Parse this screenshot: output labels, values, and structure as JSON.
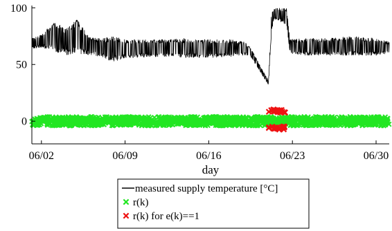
{
  "chart_data": {
    "type": "line",
    "title": "",
    "xlabel": "day",
    "ylabel": "",
    "x_unit": "day of month (June)",
    "xlim": [
      1.2,
      31.1
    ],
    "ylim": [
      -20,
      102
    ],
    "yticks": [
      0,
      50,
      100
    ],
    "xticks": [
      {
        "value": 2,
        "label": "06/02"
      },
      {
        "value": 9,
        "label": "06/09"
      },
      {
        "value": 16,
        "label": "06/16"
      },
      {
        "value": 23,
        "label": "06/23"
      },
      {
        "value": 30,
        "label": "06/30"
      }
    ],
    "legend_position": "bottom-center",
    "grid": false,
    "series": [
      {
        "name": "measured supply temperature [°C]",
        "type": "line",
        "color": "#000000",
        "envelope": [
          {
            "x": 1.2,
            "low": 64,
            "high": 73
          },
          {
            "x": 2.0,
            "low": 65,
            "high": 76
          },
          {
            "x": 3.0,
            "low": 62,
            "high": 88
          },
          {
            "x": 4.0,
            "low": 58,
            "high": 82
          },
          {
            "x": 5.0,
            "low": 60,
            "high": 90
          },
          {
            "x": 6.0,
            "low": 58,
            "high": 74
          },
          {
            "x": 7.0,
            "low": 57,
            "high": 73
          },
          {
            "x": 8.0,
            "low": 52,
            "high": 75
          },
          {
            "x": 9.0,
            "low": 56,
            "high": 72
          },
          {
            "x": 10.0,
            "low": 56,
            "high": 72
          },
          {
            "x": 12.0,
            "low": 57,
            "high": 72
          },
          {
            "x": 14.0,
            "low": 56,
            "high": 73
          },
          {
            "x": 16.0,
            "low": 56,
            "high": 72
          },
          {
            "x": 18.0,
            "low": 57,
            "high": 72
          },
          {
            "x": 19.0,
            "low": 58,
            "high": 70
          },
          {
            "x": 19.5,
            "low": 57,
            "high": 65
          },
          {
            "x": 20.5,
            "low": 40,
            "high": 45
          },
          {
            "x": 21.0,
            "low": 32,
            "high": 36
          },
          {
            "x": 21.25,
            "low": 80,
            "high": 96
          },
          {
            "x": 21.5,
            "low": 90,
            "high": 100
          },
          {
            "x": 22.5,
            "low": 85,
            "high": 100
          },
          {
            "x": 22.8,
            "low": 60,
            "high": 72
          },
          {
            "x": 24.0,
            "low": 58,
            "high": 73
          },
          {
            "x": 26.0,
            "low": 58,
            "high": 73
          },
          {
            "x": 28.0,
            "low": 58,
            "high": 75
          },
          {
            "x": 30.0,
            "low": 58,
            "high": 73
          },
          {
            "x": 31.1,
            "low": 60,
            "high": 70
          }
        ]
      },
      {
        "name": "r(k)",
        "type": "scatter",
        "marker": "x",
        "color": "#22e622",
        "x_range": [
          1.2,
          31.1
        ],
        "y_range": [
          -4,
          4
        ]
      },
      {
        "name": "r(k) for e(k)==1",
        "type": "scatter",
        "marker": "x",
        "color": "#ee1111",
        "x_range": [
          21.0,
          22.4
        ],
        "y_clusters": [
          -6,
          9
        ]
      }
    ]
  }
}
